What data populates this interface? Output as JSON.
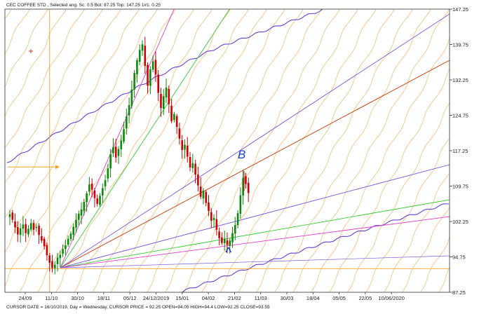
{
  "header": {
    "title": "CEC COFFEE STD , Selected ang. Sc: 0.5 Bot: 87.25 Top: 147.25 1#1: 0.25"
  },
  "status_bar": {
    "text": "CURSOR DATE = 16/10/2019, Day = Wednesday, CURSOR PRICE = 92.25 OPEN=94.05 HIGH=94.4 LOW=92.25 CLOSE=93.55"
  },
  "annotations": {
    "b_label": "B",
    "a_label": "^"
  },
  "colors": {
    "candle_up": "#0a8a0a",
    "candle_down": "#cc0000",
    "arc_orange": "#f5b35a",
    "arc_purple": "#6a3fd6",
    "fan_red": "#cc3300",
    "fan_green": "#33cc33",
    "fan_magenta": "#e040c8",
    "fan_purple": "#7755dd",
    "cursor": "#f7a325",
    "pen_blue": "#1a3fcc",
    "pen_red": "#dd1111"
  },
  "chart_data": {
    "type": "candlestick",
    "title": "CEC COFFEE STD",
    "ylim": [
      87.25,
      147.25
    ],
    "y_ticks": [
      87.25,
      94.75,
      102.25,
      109.75,
      117.25,
      124.75,
      132.25,
      139.75,
      147.25
    ],
    "x_ticks": [
      "24/09",
      "11/10",
      "30/10",
      "18/11",
      "05/12",
      "24/12/2019",
      "15/01",
      "04/02",
      "21/02",
      "11/03",
      "30/03",
      "18/04",
      "05/05",
      "22/05",
      "10/06/2020"
    ],
    "cursor": {
      "date": "16/10/2019",
      "price": 92.25
    },
    "horizontal_line_price": 92.25,
    "arrow_price": 113.8,
    "closes": [
      103.8,
      102.6,
      101.0,
      99.5,
      100.8,
      101.6,
      99.8,
      100.7,
      101.9,
      100.5,
      101.1,
      99.4,
      98.2,
      97.0,
      95.1,
      93.5,
      92.4,
      93.1,
      94.6,
      95.2,
      96.4,
      97.2,
      98.6,
      99.7,
      101.1,
      102.6,
      103.9,
      104.8,
      106.4,
      108.2,
      110.1,
      109.0,
      107.2,
      106.0,
      107.7,
      109.3,
      111.0,
      113.5,
      116.5,
      118.0,
      115.8,
      117.6,
      119.4,
      121.8,
      124.5,
      126.9,
      130.2,
      133.7,
      136.4,
      138.6,
      139.8,
      135.2,
      131.0,
      134.5,
      136.2,
      133.4,
      129.5,
      126.3,
      128.8,
      130.6,
      127.1,
      123.5,
      125.0,
      122.3,
      119.8,
      117.4,
      118.5,
      116.0,
      113.7,
      114.6,
      112.2,
      109.9,
      107.5,
      108.8,
      106.2,
      104.5,
      102.4,
      103.0,
      100.5,
      98.7,
      97.7,
      98.6,
      97.3,
      98.2,
      99.8,
      101.5,
      104.0,
      107.8,
      111.5,
      110.2,
      108.3
    ]
  }
}
